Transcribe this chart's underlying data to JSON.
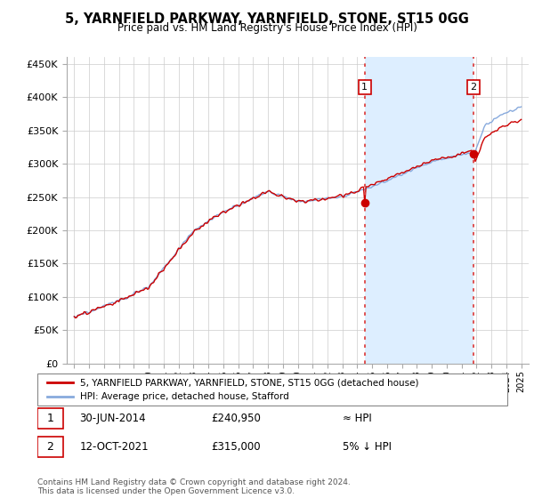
{
  "title": "5, YARNFIELD PARKWAY, YARNFIELD, STONE, ST15 0GG",
  "subtitle": "Price paid vs. HM Land Registry's House Price Index (HPI)",
  "ylabel_ticks": [
    "£0",
    "£50K",
    "£100K",
    "£150K",
    "£200K",
    "£250K",
    "£300K",
    "£350K",
    "£400K",
    "£450K"
  ],
  "ytick_values": [
    0,
    50000,
    100000,
    150000,
    200000,
    250000,
    300000,
    350000,
    400000,
    450000
  ],
  "ylim": [
    0,
    460000
  ],
  "xlim_start": 1994.5,
  "xlim_end": 2025.5,
  "hpi_color": "#88aadd",
  "price_color": "#cc0000",
  "vline_color": "#dd4444",
  "shade_color": "#ddeeff",
  "marker1_date": 2014.496,
  "marker1_price": 240950,
  "marker2_date": 2021.786,
  "marker2_price": 315000,
  "annotation1_label": "1",
  "annotation2_label": "2",
  "legend_line1": "5, YARNFIELD PARKWAY, YARNFIELD, STONE, ST15 0GG (detached house)",
  "legend_line2": "HPI: Average price, detached house, Stafford",
  "note1_num": "1",
  "note1_date": "30-JUN-2014",
  "note1_price": "£240,950",
  "note1_rel": "≈ HPI",
  "note2_num": "2",
  "note2_date": "12-OCT-2021",
  "note2_price": "£315,000",
  "note2_rel": "5% ↓ HPI",
  "footer": "Contains HM Land Registry data © Crown copyright and database right 2024.\nThis data is licensed under the Open Government Licence v3.0.",
  "background_color": "#ffffff",
  "grid_color": "#cccccc"
}
